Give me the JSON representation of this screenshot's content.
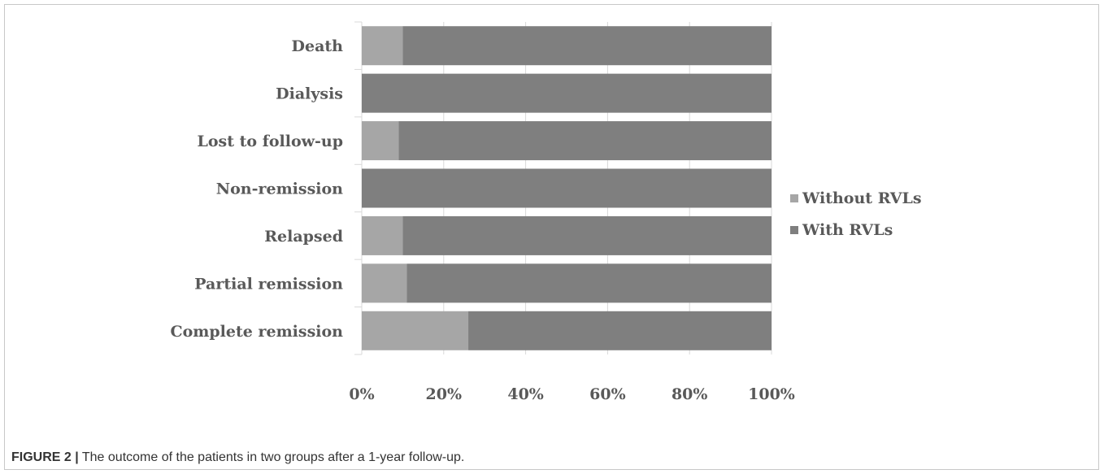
{
  "chart_data": {
    "type": "bar",
    "orientation": "horizontal",
    "stacked": "percent",
    "categories": [
      "Death",
      "Dialysis",
      "Lost to follow-up",
      "Non-remission",
      "Relapsed",
      "Partial remission",
      "Complete remission"
    ],
    "series": [
      {
        "name": "Without RVLs",
        "color": "#a6a6a6",
        "values": [
          10,
          0,
          9,
          0,
          10,
          11,
          26
        ]
      },
      {
        "name": "With RVLs",
        "color": "#7f7f7f",
        "values": [
          90,
          100,
          91,
          100,
          90,
          89,
          74
        ]
      }
    ],
    "x_ticks": [
      "0%",
      "20%",
      "40%",
      "60%",
      "80%",
      "100%"
    ],
    "xlim": [
      0,
      100
    ],
    "grid": "vertical",
    "legend": "right"
  },
  "caption": {
    "label": "FIGURE 2 |",
    "text": " The outcome of the patients in two groups after a 1-year follow-up."
  }
}
